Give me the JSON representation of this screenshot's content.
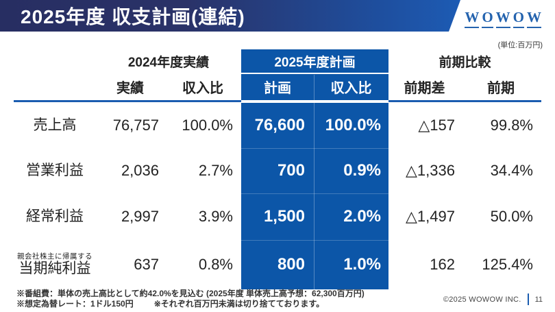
{
  "slide": {
    "title": "2025年度 収支計画(連結)",
    "unit_note": "(単位:百万円)",
    "logo": {
      "letters": [
        "W",
        "O",
        "W",
        "O",
        "W"
      ]
    }
  },
  "table": {
    "groups": {
      "fy2024": "2024年度実績",
      "fy2025": "2025年度計画",
      "comparison": "前期比較"
    },
    "subheaders": {
      "actual": "実績",
      "actual_ratio": "収入比",
      "plan": "計画",
      "plan_ratio": "収入比",
      "diff": "前期差",
      "prev": "前期"
    },
    "rows": [
      {
        "label": "売上高",
        "actual": "76,757",
        "actual_ratio": "100.0%",
        "plan": "76,600",
        "plan_ratio": "100.0%",
        "diff": "△157",
        "prev": "99.8%"
      },
      {
        "label": "営業利益",
        "actual": "2,036",
        "actual_ratio": "2.7%",
        "plan": "700",
        "plan_ratio": "0.9%",
        "diff": "△1,336",
        "prev": "34.4%"
      },
      {
        "label": "経常利益",
        "actual": "2,997",
        "actual_ratio": "3.9%",
        "plan": "1,500",
        "plan_ratio": "2.0%",
        "diff": "△1,497",
        "prev": "50.0%"
      },
      {
        "label": "当期純利益",
        "note": "親会社株主に帰属する",
        "actual": "637",
        "actual_ratio": "0.8%",
        "plan": "800",
        "plan_ratio": "1.0%",
        "diff": "162",
        "prev": "125.4%"
      }
    ]
  },
  "notes": {
    "line1": "※番組費：単体の売上高比として約42.0%を見込む (2025年度 単体売上高予想：62,300百万円)",
    "line2a": "※想定為替レート：1ドル150円",
    "line2b": "※それぞれ百万円未満は切り捨てております。"
  },
  "footer": {
    "copyright": "©2025 WOWOW INC.",
    "page": "11"
  },
  "colors": {
    "highlight_blue": "#0c56a8",
    "rule_blue": "#1a5cb0",
    "header_navy": "#272e62",
    "header_blue": "#1d5cb5",
    "logo_blue": "#2463ae"
  }
}
